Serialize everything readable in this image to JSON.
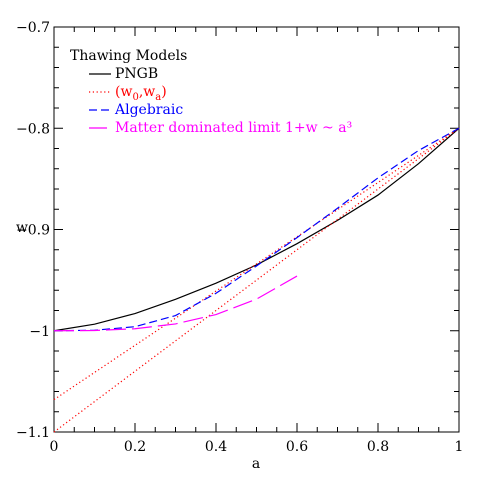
{
  "chart_data": {
    "type": "line",
    "xlabel": "a",
    "ylabel": "w",
    "xlim": [
      0,
      1
    ],
    "ylim": [
      -1.1,
      -0.7
    ],
    "xticks": [
      0,
      0.2,
      0.4,
      0.6,
      0.8,
      1
    ],
    "xtick_labels": [
      "0",
      "0.2",
      "0.4",
      "0.6",
      "0.8",
      "1"
    ],
    "yticks": [
      -1.1,
      -1,
      -0.9,
      -0.8,
      -0.7
    ],
    "ytick_labels": [
      "−1.1",
      "−1",
      "−0.9",
      "−0.8",
      "−0.7"
    ],
    "grid": false,
    "legend_title": "Thawing Models",
    "legend_placement": "top-left",
    "series": [
      {
        "name": "PNGB",
        "color": "#000000",
        "dash": "solid",
        "x": [
          0,
          0.1,
          0.2,
          0.3,
          0.4,
          0.5,
          0.6,
          0.7,
          0.8,
          0.9,
          1.0
        ],
        "y": [
          -1.0,
          -0.9935,
          -0.983,
          -0.969,
          -0.953,
          -0.935,
          -0.914,
          -0.891,
          -0.866,
          -0.835,
          -0.8
        ]
      },
      {
        "name": "(w0,wa)",
        "legend_label": [
          "(w",
          "0",
          ",w",
          "a",
          ")"
        ],
        "color": "#ff0000",
        "dash": "dotted",
        "x": [
          0,
          1
        ],
        "y": [
          -1.068,
          -0.8
        ]
      },
      {
        "name": "",
        "color": "#ff0000",
        "dash": "dotted",
        "x": [
          0,
          1
        ],
        "y": [
          -1.1,
          -0.8
        ]
      },
      {
        "name": "Algebraic",
        "color": "#0000ff",
        "dash": "dashed",
        "x": [
          0,
          0.1,
          0.2,
          0.3,
          0.4,
          0.5,
          0.6,
          0.7,
          0.8,
          0.9,
          1.0
        ],
        "y": [
          -1.0,
          -0.9995,
          -0.996,
          -0.985,
          -0.963,
          -0.936,
          -0.908,
          -0.879,
          -0.849,
          -0.822,
          -0.8
        ]
      },
      {
        "name": "Matter dominated limit 1+w ~ a³",
        "color": "#ff00ff",
        "dash": "longdash",
        "x": [
          0,
          0.1,
          0.2,
          0.3,
          0.4,
          0.5,
          0.6
        ],
        "y": [
          -1.0,
          -0.99975,
          -0.998,
          -0.99325,
          -0.984,
          -0.96875,
          -0.946
        ]
      }
    ]
  }
}
